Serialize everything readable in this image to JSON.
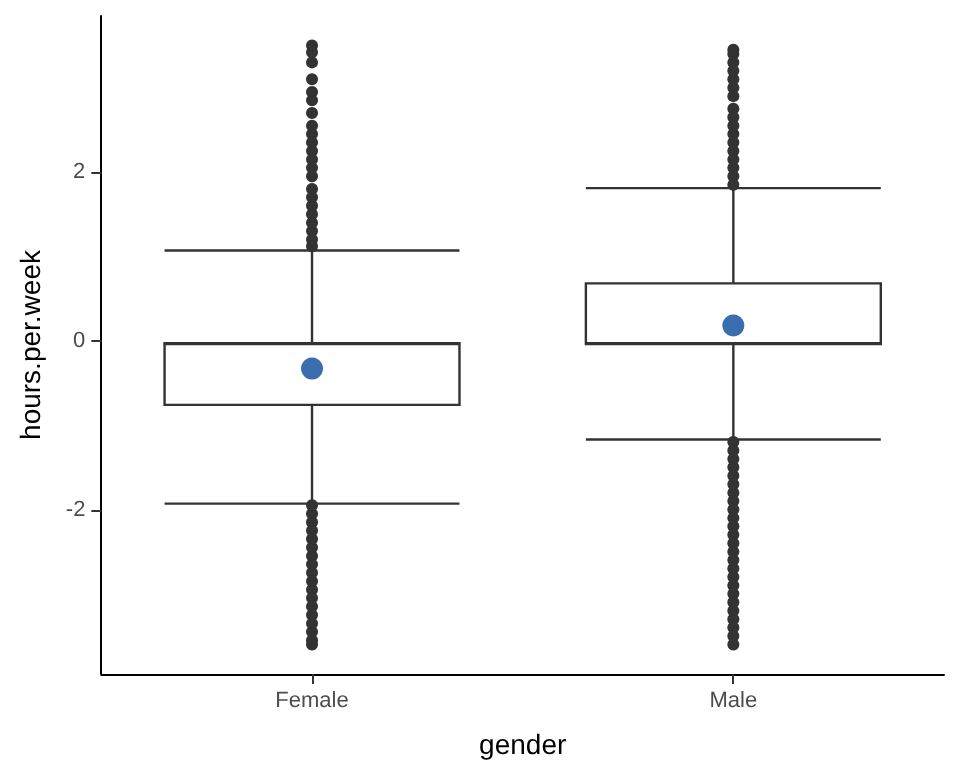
{
  "chart_data": {
    "type": "box",
    "xlabel": "gender",
    "ylabel": "hours.per.week",
    "categories": [
      "Female",
      "Male"
    ],
    "ylim": [
      -3.95,
      3.85
    ],
    "yticks": [
      -2,
      0,
      2
    ],
    "grid": false,
    "series": [
      {
        "color": "#333333",
        "boxes": [
          {
            "low": -1.93,
            "q1": -0.76,
            "median": -0.04,
            "q3": -0.03,
            "high": 1.07,
            "outliers": [
              1.12,
              1.2,
              1.3,
              1.4,
              1.5,
              1.6,
              1.7,
              1.8,
              1.95,
              2.05,
              2.15,
              2.25,
              2.35,
              2.45,
              2.55,
              2.7,
              2.85,
              2.95,
              3.1,
              3.3,
              3.42,
              3.5,
              -1.95,
              -2.05,
              -2.15,
              -2.25,
              -2.35,
              -2.45,
              -2.55,
              -2.65,
              -2.75,
              -2.85,
              -2.95,
              -3.05,
              -3.15,
              -3.25,
              -3.35,
              -3.45,
              -3.55,
              -3.6
            ]
          },
          {
            "low": -1.17,
            "q1": -0.04,
            "median": -0.03,
            "q3": 0.68,
            "high": 1.81,
            "outliers": [
              1.85,
              1.95,
              2.05,
              2.15,
              2.25,
              2.35,
              2.45,
              2.55,
              2.65,
              2.75,
              2.9,
              3.0,
              3.1,
              3.2,
              3.3,
              3.4,
              3.45,
              -1.2,
              -1.3,
              -1.4,
              -1.5,
              -1.6,
              -1.7,
              -1.8,
              -1.9,
              -2.0,
              -2.1,
              -2.2,
              -2.3,
              -2.4,
              -2.5,
              -2.6,
              -2.7,
              -2.8,
              -2.9,
              -3.0,
              -3.1,
              -3.2,
              -3.3,
              -3.4,
              -3.5,
              -3.6
            ]
          }
        ]
      },
      {
        "type": "scatter",
        "x": [
          "Female",
          "Male"
        ],
        "values": [
          -0.33,
          0.18
        ],
        "color": "#3a6eaf",
        "marker": "circle"
      }
    ]
  }
}
